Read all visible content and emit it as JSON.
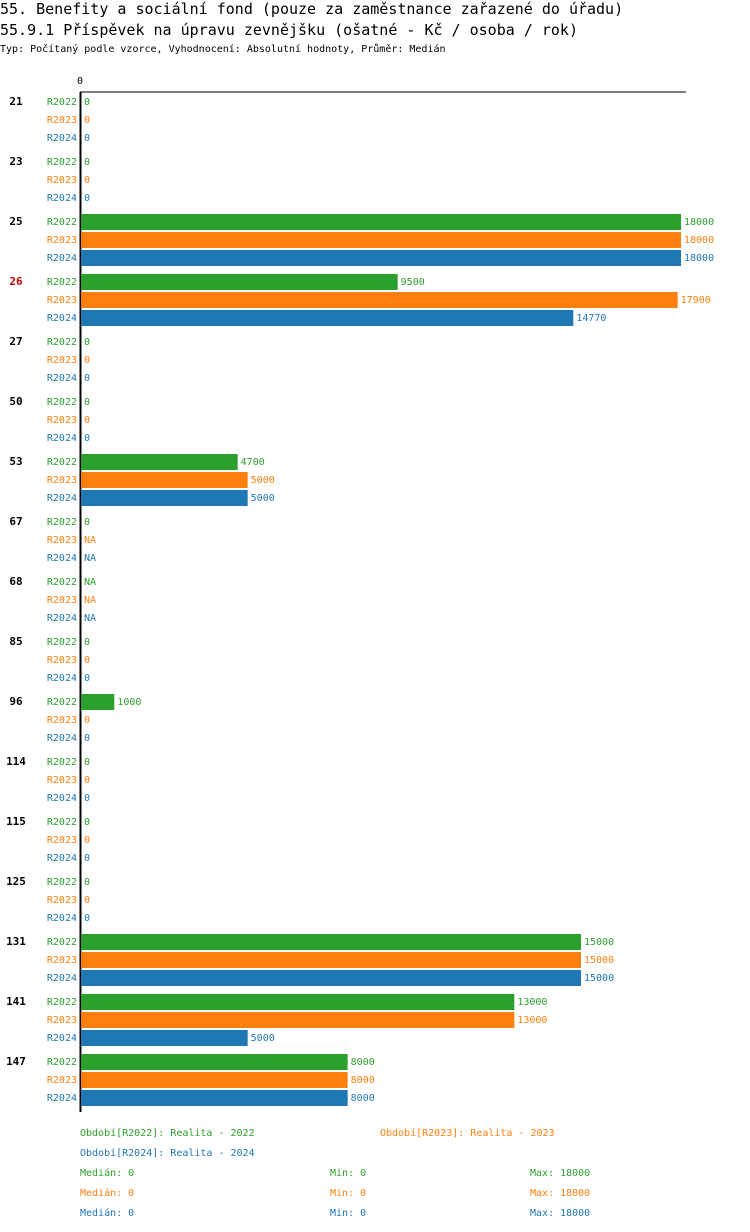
{
  "title_line1": "55. Benefity a sociální fond (pouze za zaměstnance zařazené do úřadu)",
  "title_line2": "55.9.1 Příspěvek na úpravu zevnějšku (ošatné - Kč / osoba / rok)",
  "subtitle": "Typ: Počítaný podle vzorce, Vyhodnocení: Absolutní hodnoty, Průměr: Medián",
  "colors": {
    "R2022": "#2ca02c",
    "R2023": "#ff7f0e",
    "R2024": "#1f77b4",
    "highlight": "#cc0000"
  },
  "chart_data": {
    "type": "bar",
    "orientation": "horizontal",
    "axis_zero_label": "0",
    "xlim": [
      0,
      18000
    ],
    "series_names": [
      "R2022",
      "R2023",
      "R2024"
    ],
    "highlighted_category": "26",
    "categories": [
      {
        "label": "21",
        "values": [
          "0",
          "0",
          "0"
        ]
      },
      {
        "label": "23",
        "values": [
          "0",
          "0",
          "0"
        ]
      },
      {
        "label": "25",
        "values": [
          "18000",
          "18000",
          "18000"
        ]
      },
      {
        "label": "26",
        "values": [
          "9500",
          "17900",
          "14770"
        ]
      },
      {
        "label": "27",
        "values": [
          "0",
          "0",
          "0"
        ]
      },
      {
        "label": "50",
        "values": [
          "0",
          "0",
          "0"
        ]
      },
      {
        "label": "53",
        "values": [
          "4700",
          "5000",
          "5000"
        ]
      },
      {
        "label": "67",
        "values": [
          "0",
          "NA",
          "NA"
        ]
      },
      {
        "label": "68",
        "values": [
          "NA",
          "NA",
          "NA"
        ]
      },
      {
        "label": "85",
        "values": [
          "0",
          "0",
          "0"
        ]
      },
      {
        "label": "96",
        "values": [
          "1000",
          "0",
          "0"
        ]
      },
      {
        "label": "114",
        "values": [
          "0",
          "0",
          "0"
        ]
      },
      {
        "label": "115",
        "values": [
          "0",
          "0",
          "0"
        ]
      },
      {
        "label": "125",
        "values": [
          "0",
          "0",
          "0"
        ]
      },
      {
        "label": "131",
        "values": [
          "15000",
          "15000",
          "15000"
        ]
      },
      {
        "label": "141",
        "values": [
          "13000",
          "13000",
          "5000"
        ]
      },
      {
        "label": "147",
        "values": [
          "8000",
          "8000",
          "8000"
        ]
      }
    ]
  },
  "legend": {
    "period_2022": "Období[R2022]: Realita - 2022",
    "period_2023": "Období[R2023]: Realita - 2023",
    "period_2024": "Období[R2024]: Realita - 2024",
    "stats": [
      {
        "median": "Medián: 0",
        "min": "Min: 0",
        "max": "Max: 18000"
      },
      {
        "median": "Medián: 0",
        "min": "Min: 0",
        "max": "Max: 18000"
      },
      {
        "median": "Medián: 0",
        "min": "Min: 0",
        "max": "Max: 18000"
      }
    ]
  }
}
